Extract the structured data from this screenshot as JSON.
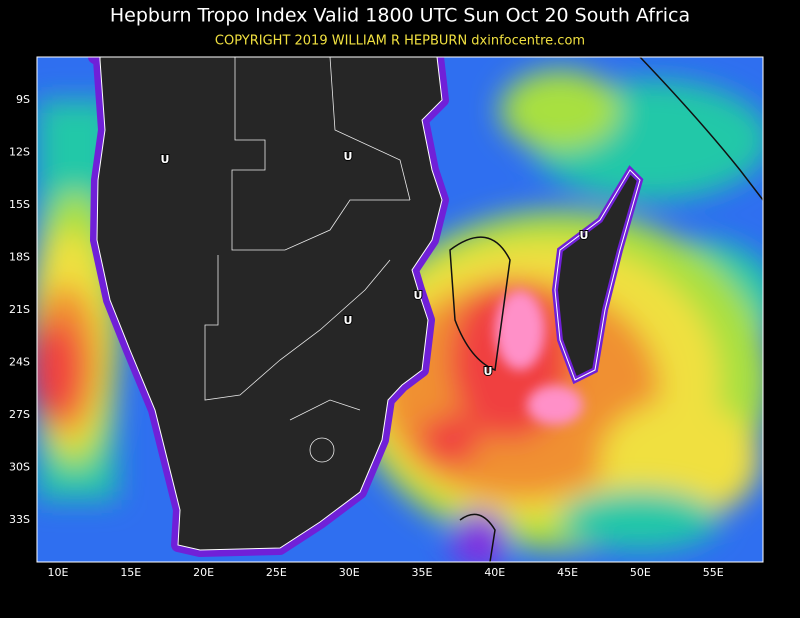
{
  "header": {
    "title": "Hepburn Tropo Index Valid 1800 UTC Sun Oct 20 South Africa",
    "copyright": "COPYRIGHT 2019  WILLIAM R HEPBURN  dxinfocentre.com"
  },
  "map": {
    "lat_labels": [
      "9S",
      "12S",
      "15S",
      "18S",
      "21S",
      "24S",
      "27S",
      "30S",
      "33S"
    ],
    "lon_labels": [
      "10E",
      "15E",
      "20E",
      "25E",
      "30E",
      "35E",
      "40E",
      "45E",
      "50E",
      "55E"
    ],
    "markers": [
      "U",
      "U",
      "U",
      "U",
      "U",
      "U"
    ]
  }
}
